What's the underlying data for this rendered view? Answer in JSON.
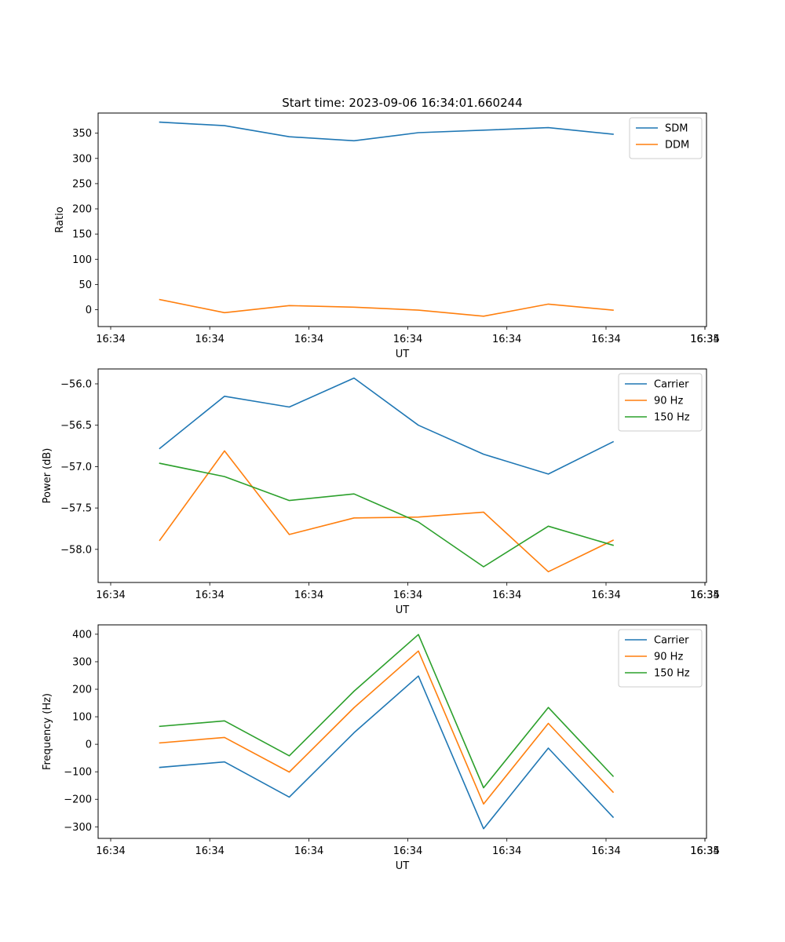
{
  "colors": {
    "c0": "#1f77b4",
    "c1": "#ff7f0e",
    "c2": "#2ca02c"
  },
  "chart_data": [
    {
      "type": "line",
      "title": "Start time: 2023-09-06 16:34:01.660244",
      "xlabel": "UT",
      "ylabel": "Ratio",
      "x_tick_labels": [
        "16:34",
        "16:34",
        "16:34",
        "16:34",
        "16:34",
        "16:34",
        "16:34",
        "16:35"
      ],
      "yticks": [
        0,
        50,
        100,
        150,
        200,
        250,
        300,
        350
      ],
      "ylim": [
        -33.5,
        390
      ],
      "legend_position": "top-right",
      "x": [
        1,
        2,
        3,
        4,
        5,
        6,
        7,
        8
      ],
      "series": [
        {
          "name": "SDM",
          "color": "#1f77b4",
          "values": [
            372,
            365,
            343,
            335,
            351,
            356,
            361,
            348
          ]
        },
        {
          "name": "DDM",
          "color": "#ff7f0e",
          "values": [
            20,
            -6,
            8,
            5,
            -1,
            -13,
            11,
            -1
          ]
        }
      ]
    },
    {
      "type": "line",
      "title": "",
      "xlabel": "UT",
      "ylabel": "Power (dB)",
      "x_tick_labels": [
        "16:34",
        "16:34",
        "16:34",
        "16:34",
        "16:34",
        "16:34",
        "16:34",
        "16:35"
      ],
      "yticks": [
        -56.0,
        -56.5,
        -57.0,
        -57.5,
        -58.0
      ],
      "ytick_labels": [
        "−56.0",
        "−56.5",
        "−57.0",
        "−57.5",
        "−58.0"
      ],
      "ylim": [
        -58.4,
        -55.82
      ],
      "legend_position": "top-right",
      "x": [
        1,
        2,
        3,
        4,
        5,
        6,
        7,
        8
      ],
      "series": [
        {
          "name": "Carrier",
          "color": "#1f77b4",
          "values": [
            -56.78,
            -56.15,
            -56.28,
            -55.93,
            -56.5,
            -56.85,
            -57.09,
            -56.7
          ]
        },
        {
          "name": "90 Hz",
          "color": "#ff7f0e",
          "values": [
            -57.89,
            -56.81,
            -57.82,
            -57.62,
            -57.61,
            -57.55,
            -58.27,
            -57.89
          ]
        },
        {
          "name": "150 Hz",
          "color": "#2ca02c",
          "values": [
            -56.96,
            -57.12,
            -57.41,
            -57.33,
            -57.67,
            -58.21,
            -57.72,
            -57.95
          ]
        }
      ]
    },
    {
      "type": "line",
      "title": "",
      "xlabel": "UT",
      "ylabel": "Frequency (Hz)",
      "x_tick_labels": [
        "16:34",
        "16:34",
        "16:34",
        "16:34",
        "16:34",
        "16:34",
        "16:34",
        "16:35"
      ],
      "yticks": [
        400,
        300,
        200,
        100,
        0,
        -100,
        -200,
        -300
      ],
      "ytick_labels": [
        "400",
        "300",
        "200",
        "100",
        "0",
        "−100",
        "−200",
        "−300"
      ],
      "ylim": [
        -342,
        434
      ],
      "legend_position": "top-right",
      "x": [
        1,
        2,
        3,
        4,
        5,
        6,
        7,
        8
      ],
      "series": [
        {
          "name": "Carrier",
          "color": "#1f77b4",
          "values": [
            -84,
            -64,
            -192,
            42,
            248,
            -307,
            -14,
            -265
          ]
        },
        {
          "name": "90 Hz",
          "color": "#ff7f0e",
          "values": [
            5,
            25,
            -101,
            133,
            339,
            -217,
            76,
            -174
          ]
        },
        {
          "name": "150 Hz",
          "color": "#2ca02c",
          "values": [
            65,
            85,
            -42,
            193,
            399,
            -158,
            134,
            -116
          ]
        }
      ]
    }
  ]
}
